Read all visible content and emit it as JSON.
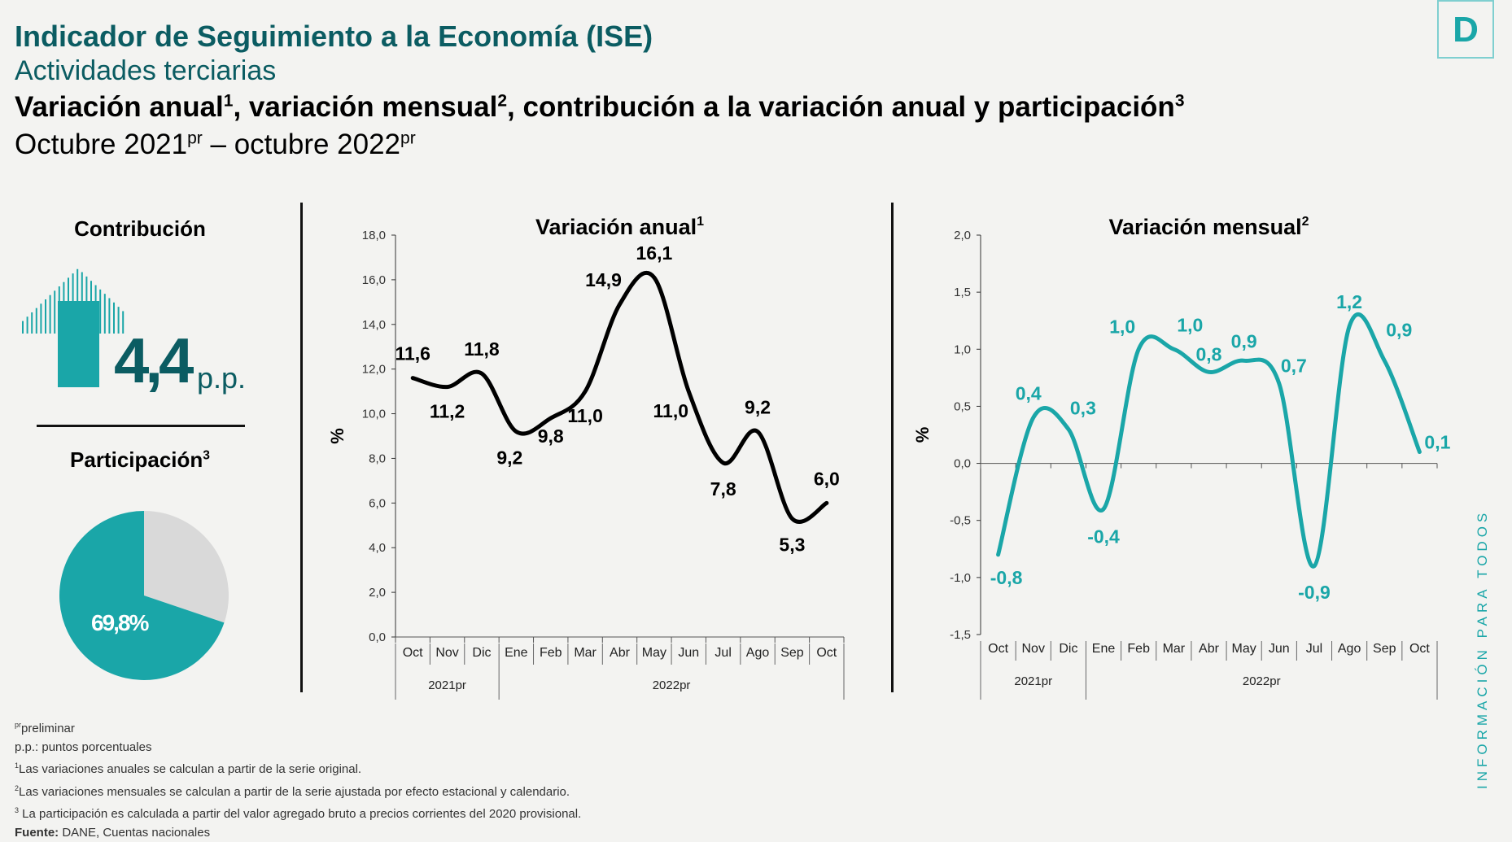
{
  "header": {
    "title": "Indicador de Seguimiento a la Economía (ISE)",
    "subtitle": "Actividades terciarias",
    "heading": "Variación anual",
    "heading_sup1": "1",
    "heading_mid1": ", variación mensual",
    "heading_sup2": "2",
    "heading_mid2": ", contribución a la variación anual y participación",
    "heading_sup3": "3",
    "period_a": "Octubre 2021",
    "period_sup": "pr",
    "period_b": " – octubre 2022",
    "period_sup2": "pr"
  },
  "logo": {
    "letter": "D"
  },
  "side_text": "INFORMACIÓN PARA TODOS",
  "contribution": {
    "label": "Contribución",
    "value": "4,4",
    "unit": "p.p.",
    "icon": "arrow-up-icon"
  },
  "participation": {
    "label": "Participación",
    "sup": "3",
    "value": "69,8%",
    "share": 69.8
  },
  "colors": {
    "teal": "#1aa6a8",
    "dark_teal": "#0b5c62",
    "gray": "#d9d9d9",
    "line": "#000000"
  },
  "chart_data": [
    {
      "type": "line",
      "title": "Variación anual",
      "title_sup": "1",
      "ylabel": "%",
      "ylim": [
        0,
        18
      ],
      "yticks": [
        "0,0",
        "2,0",
        "4,0",
        "6,0",
        "8,0",
        "10,0",
        "12,0",
        "14,0",
        "16,0",
        "18,0"
      ],
      "categories": [
        "Oct",
        "Nov",
        "Dic",
        "Ene",
        "Feb",
        "Mar",
        "Abr",
        "May",
        "Jun",
        "Jul",
        "Ago",
        "Sep",
        "Oct"
      ],
      "groups": [
        {
          "label": "2021pr",
          "count": 3
        },
        {
          "label": "2022pr",
          "count": 10
        }
      ],
      "values": [
        11.6,
        11.2,
        11.8,
        9.2,
        9.8,
        11.0,
        14.9,
        16.1,
        11.0,
        7.8,
        9.2,
        5.3,
        6.0
      ],
      "labels": [
        "11,6",
        "11,2",
        "11,8",
        "9,2",
        "9,8",
        "11,0",
        "14,9",
        "16,1",
        "11,0",
        "7,8",
        "9,2",
        "5,3",
        "6,0"
      ],
      "color": "#000000"
    },
    {
      "type": "line",
      "title": "Variación mensual",
      "title_sup": "2",
      "ylabel": "%",
      "ylim": [
        -1.5,
        2.0
      ],
      "yticks": [
        "-1,5",
        "-1,0",
        "-0,5",
        "0,0",
        "0,5",
        "1,0",
        "1,5",
        "2,0"
      ],
      "categories": [
        "Oct",
        "Nov",
        "Dic",
        "Ene",
        "Feb",
        "Mar",
        "Abr",
        "May",
        "Jun",
        "Jul",
        "Ago",
        "Sep",
        "Oct"
      ],
      "groups": [
        {
          "label": "2021pr",
          "count": 3
        },
        {
          "label": "2022pr",
          "count": 10
        }
      ],
      "values": [
        -0.8,
        0.4,
        0.3,
        -0.4,
        1.0,
        1.0,
        0.8,
        0.9,
        0.7,
        -0.9,
        1.2,
        0.9,
        0.1
      ],
      "labels": [
        "-0,8",
        "0,4",
        "0,3",
        "-0,4",
        "1,0",
        "1,0",
        "0,8",
        "0,9",
        "0,7",
        "-0,9",
        "1,2",
        "0,9",
        "0,1"
      ],
      "color": "#1aa6a8"
    }
  ],
  "footnotes": {
    "f0_sup": "pr",
    "f0": "preliminar",
    "f1": "p.p.: puntos porcentuales",
    "f2_sup": "1",
    "f2": "Las variaciones anuales se calculan a partir de la serie original.",
    "f3_sup": "2",
    "f3": "Las variaciones mensuales se calculan a partir de la serie ajustada por efecto estacional y calendario.",
    "f4_sup": "3",
    "f4": " La participación es calculada a partir del valor agregado bruto a precios corrientes del 2020 provisional.",
    "source_label": "Fuente:",
    "source": " DANE, Cuentas nacionales"
  }
}
